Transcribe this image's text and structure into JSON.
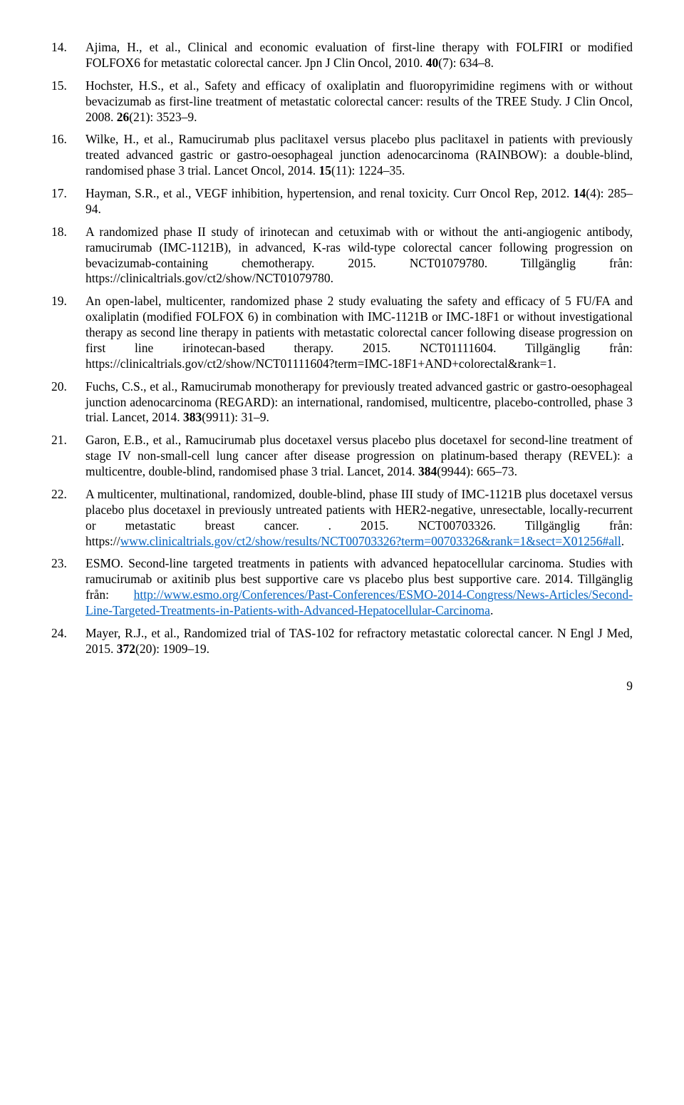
{
  "references": [
    {
      "n": "14.",
      "pre": "Ajima, H., et al., Clinical and economic evaluation of first-line therapy with FOLFIRI or modified FOLFOX6 for metastatic colorectal cancer. Jpn J Clin Oncol, 2010. ",
      "bold": "40",
      "post": "(7): 634–8."
    },
    {
      "n": "15.",
      "pre": "Hochster, H.S., et al., Safety and efficacy of oxaliplatin and fluoropyrimidine regimens with or without bevacizumab as first-line treatment of metastatic colorectal cancer: results of the TREE Study. J Clin Oncol, 2008. ",
      "bold": "26",
      "post": "(21): 3523–9."
    },
    {
      "n": "16.",
      "pre": "Wilke, H., et al., Ramucirumab plus paclitaxel versus placebo plus paclitaxel in patients with previously treated advanced gastric or gastro-oesophageal junction adenocarcinoma (RAINBOW): a double-blind, randomised phase 3 trial. Lancet Oncol, 2014. ",
      "bold": "15",
      "post": "(11): 1224–35."
    },
    {
      "n": "17.",
      "pre": "Hayman, S.R., et al., VEGF inhibition, hypertension, and renal toxicity. Curr Oncol Rep, 2012. ",
      "bold": "14",
      "post": "(4): 285–94."
    },
    {
      "n": "18.",
      "pre": "A randomized phase II study of irinotecan and cetuximab with or without the anti-angiogenic antibody, ramucirumab (IMC-1121B), in advanced, K-ras wild-type colorectal cancer following progression on bevacizumab-containing chemotherapy. 2015. NCT01079780. Tillgänglig från: https://clinicaltrials.gov/ct2/show/NCT01079780.",
      "bold": "",
      "post": ""
    },
    {
      "n": "19.",
      "pre": "An open-label, multicenter, randomized phase 2 study evaluating the safety and efficacy of 5 FU/FA and oxaliplatin (modified FOLFOX 6) in combination with IMC-1121B or IMC-18F1 or without investigational therapy as second line therapy in patients with metastatic colorectal cancer following disease progression on first line irinotecan-based therapy. 2015. NCT01111604. Tillgänglig från: https://clinicaltrials.gov/ct2/show/NCT01111604?term=IMC-18F1+AND+colorectal&rank=1.",
      "bold": "",
      "post": ""
    },
    {
      "n": "20.",
      "pre": "Fuchs, C.S., et al., Ramucirumab monotherapy for previously treated advanced gastric or gastro-oesophageal junction adenocarcinoma (REGARD): an international, randomised, multicentre, placebo-controlled, phase 3 trial. Lancet, 2014. ",
      "bold": "383",
      "post": "(9911): 31–9."
    },
    {
      "n": "21.",
      "pre": "Garon, E.B., et al., Ramucirumab plus docetaxel versus placebo plus docetaxel for second-line treatment of stage IV non-small-cell lung cancer after disease progression on platinum-based therapy (REVEL): a multicentre, double-blind, randomised phase 3 trial. Lancet, 2014. ",
      "bold": "384",
      "post": "(9944): 665–73."
    },
    {
      "n": "22.",
      "pre": "A multicenter, multinational, randomized, double-blind, phase III study of IMC-1121B plus docetaxel versus placebo plus docetaxel in previously untreated patients with HER2-negative, unresectable, locally-recurrent or metastatic breast cancer. . 2015. NCT00703326. Tillgänglig från: https://",
      "link": "www.clinicaltrials.gov/ct2/show/results/NCT00703326?term=00703326&rank=1&sect=X01256#all",
      "post2": "."
    },
    {
      "n": "23.",
      "pre": "ESMO. Second-line targeted treatments in patients with advanced hepatocellular carcinoma. Studies with ramucirumab or axitinib plus best supportive care vs placebo plus best supportive care. 2014. Tillgänglig från: ",
      "link": "http://www.esmo.org/Conferences/Past-Conferences/ESMO-2014-Congress/News-Articles/Second-Line-Targeted-Treatments-in-Patients-with-Advanced-Hepatocellular-Carcinoma",
      "post2": "."
    },
    {
      "n": "24.",
      "pre": "Mayer, R.J., et al., Randomized trial of TAS-102 for refractory metastatic colorectal cancer. N Engl J Med, 2015. ",
      "bold": "372",
      "post": "(20): 1909–19."
    }
  ],
  "page_number": "9"
}
